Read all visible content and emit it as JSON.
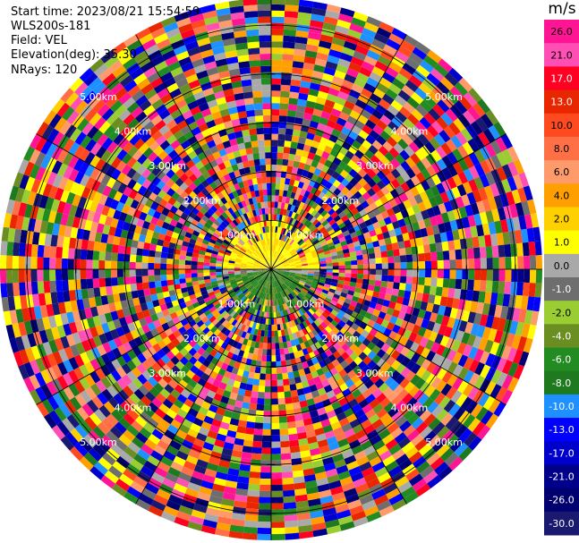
{
  "info": {
    "start_time": "Start time: 2023/08/21 15:54:59",
    "instrument": "WLS200s-181",
    "field": "Field: VEL",
    "elevation": "Elevation(deg): 35.30",
    "nrays": "NRays: 120"
  },
  "chart_data": {
    "type": "heatmap",
    "projection": "polar PPI",
    "field": "VEL",
    "units": "m/s",
    "n_rays": 120,
    "range_rings_km": [
      1.0,
      2.0,
      3.0,
      4.0,
      5.0
    ],
    "ring_labels": [
      "1.00km",
      "2.00km",
      "3.00km",
      "4.00km",
      "5.00km"
    ],
    "colorbar": {
      "title": "m/s",
      "ticks": [
        "26.0",
        "21.0",
        "17.0",
        "13.0",
        "10.0",
        "8.0",
        "6.0",
        "4.0",
        "2.0",
        "1.0",
        "0.0",
        "-1.0",
        "-2.0",
        "-4.0",
        "-6.0",
        "-8.0",
        "-10.0",
        "-13.0",
        "-17.0",
        "-21.0",
        "-26.0",
        "-30.0"
      ],
      "colors": [
        "#ff1493",
        "#ff4fb5",
        "#ff0022",
        "#e82600",
        "#ff4a20",
        "#ff7046",
        "#ff9a6a",
        "#ffa000",
        "#ffd000",
        "#ffff00",
        "#a9a9a9",
        "#6e6e6e",
        "#9acd32",
        "#6b8e23",
        "#228b22",
        "#1f7a1f",
        "#1e90ff",
        "#0000ff",
        "#0000cd",
        "#00008b",
        "#000070",
        "#191970"
      ]
    }
  }
}
